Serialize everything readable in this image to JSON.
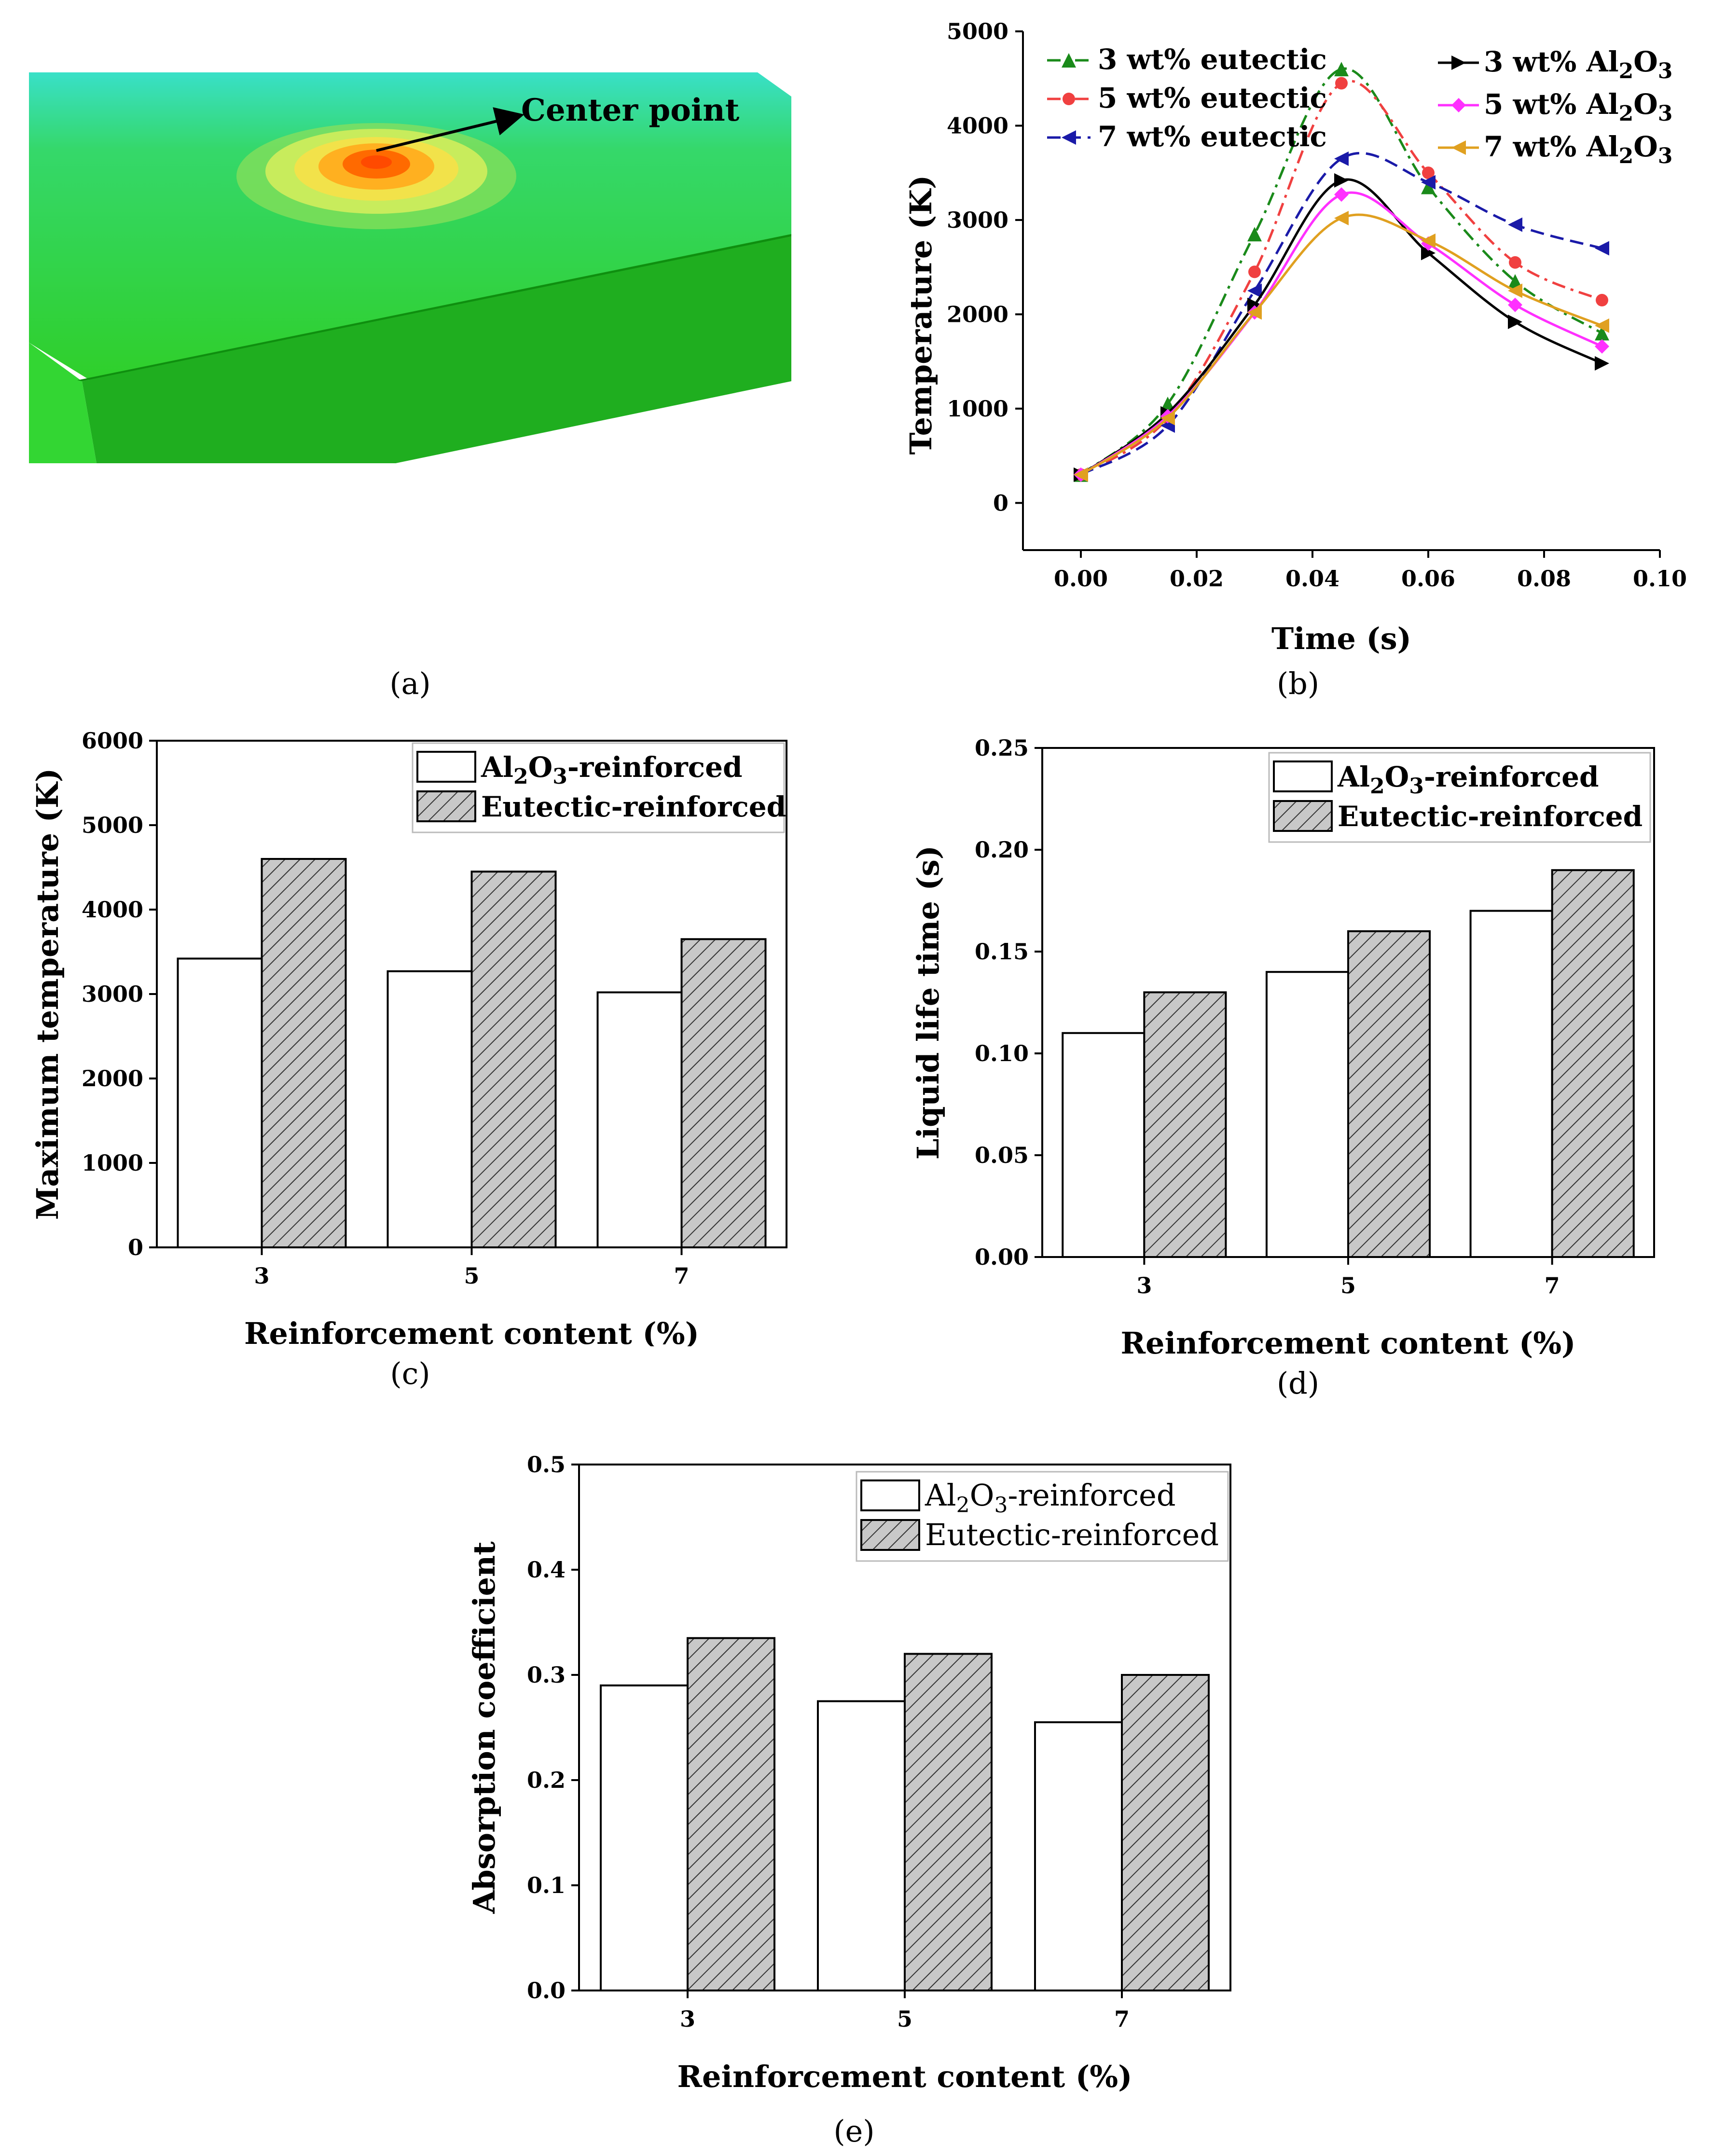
{
  "panel_a": {
    "caption": "(a)",
    "annotation": "Center point",
    "colors": {
      "base_green": "#2ecc2e",
      "dark_green": "#18a818",
      "cyan_edge": "#39e0c8",
      "hot": "#ff6a00"
    }
  },
  "captions": {
    "b": "(b)",
    "c": "(c)",
    "d": "(d)",
    "e": "(e)"
  },
  "chart_data": [
    {
      "id": "b",
      "type": "line",
      "xlabel": "Time (s)",
      "ylabel": "Temperature (K)",
      "xlim": [
        -0.01,
        0.1
      ],
      "ylim": [
        -500,
        5000
      ],
      "xticks": [
        "0.00",
        "0.02",
        "0.04",
        "0.06",
        "0.08",
        "0.10"
      ],
      "yticks": [
        "0",
        "1000",
        "2000",
        "3000",
        "4000",
        "5000"
      ],
      "legend_position": "top",
      "series": [
        {
          "name": "3 wt% eutectic",
          "color": "#1a8a1a",
          "marker": "triangle-up",
          "dash": "dashdot",
          "x": [
            0,
            0.015,
            0.03,
            0.045,
            0.06,
            0.075,
            0.09
          ],
          "y": [
            300,
            1050,
            2850,
            4600,
            3350,
            2350,
            1800
          ]
        },
        {
          "name": "5 wt% eutectic",
          "color": "#f04040",
          "marker": "circle",
          "dash": "dashdot",
          "x": [
            0,
            0.015,
            0.03,
            0.045,
            0.06,
            0.075,
            0.09
          ],
          "y": [
            300,
            900,
            2450,
            4450,
            3500,
            2550,
            2150
          ]
        },
        {
          "name": "7 wt% eutectic",
          "color": "#1a1aa8",
          "marker": "triangle-left",
          "dash": "dash",
          "x": [
            0,
            0.015,
            0.03,
            0.045,
            0.06,
            0.075,
            0.09
          ],
          "y": [
            300,
            820,
            2250,
            3650,
            3400,
            2950,
            2700
          ]
        },
        {
          "name": "3 wt% Al2O3",
          "color": "#000000",
          "marker": "triangle-right",
          "dash": "solid",
          "x": [
            0,
            0.015,
            0.03,
            0.045,
            0.06,
            0.075,
            0.09
          ],
          "y": [
            300,
            950,
            2100,
            3420,
            2650,
            1920,
            1480
          ]
        },
        {
          "name": "5 wt% Al2O3",
          "color": "#ff30ff",
          "marker": "diamond",
          "dash": "solid",
          "x": [
            0,
            0.015,
            0.03,
            0.045,
            0.06,
            0.075,
            0.09
          ],
          "y": [
            300,
            920,
            2020,
            3270,
            2750,
            2100,
            1660
          ]
        },
        {
          "name": "7 wt% Al2O3",
          "color": "#e0a020",
          "marker": "triangle-left",
          "dash": "solid",
          "x": [
            0,
            0.015,
            0.03,
            0.045,
            0.06,
            0.075,
            0.09
          ],
          "y": [
            300,
            900,
            2020,
            3020,
            2780,
            2250,
            1880
          ]
        }
      ],
      "legend_labels": {
        "left": [
          "3 wt% eutectic",
          "5 wt% eutectic",
          "7 wt% eutectic"
        ],
        "right_prefix": [
          "3 wt% Al",
          "5 wt% Al",
          "7 wt% Al"
        ],
        "sub2": "2",
        "o": "O",
        "sub3": "3"
      }
    },
    {
      "id": "c",
      "type": "bar",
      "xlabel": "Reinforcement content (%)",
      "ylabel": "Maximum temperature (K)",
      "categories": [
        "3",
        "5",
        "7"
      ],
      "ylim": [
        0,
        6000
      ],
      "yticks": [
        "0",
        "1000",
        "2000",
        "3000",
        "4000",
        "5000",
        "6000"
      ],
      "legend_position": "top-right",
      "series": [
        {
          "name": "Al2O3-reinforced",
          "values": [
            3420,
            3270,
            3020
          ],
          "fill": "white"
        },
        {
          "name": "Eutectic-reinforced",
          "values": [
            4600,
            4450,
            3650
          ],
          "fill": "hatched"
        }
      ],
      "legend_labels": {
        "s1_a": "Al",
        "s1_sub2": "2",
        "s1_b": "O",
        "s1_sub3": "3",
        "s1_c": "-reinforced",
        "s2": "Eutectic-reinforced"
      }
    },
    {
      "id": "d",
      "type": "bar",
      "xlabel": "Reinforcement content (%)",
      "ylabel": "Liquid life time (s)",
      "categories": [
        "3",
        "5",
        "7"
      ],
      "ylim": [
        0,
        0.25
      ],
      "yticks": [
        "0.00",
        "0.05",
        "0.10",
        "0.15",
        "0.20",
        "0.25"
      ],
      "legend_position": "top-right",
      "series": [
        {
          "name": "Al2O3-reinforced",
          "values": [
            0.11,
            0.14,
            0.17
          ],
          "fill": "white"
        },
        {
          "name": "Eutectic-reinforced",
          "values": [
            0.13,
            0.16,
            0.19
          ],
          "fill": "hatched"
        }
      ],
      "legend_labels": {
        "s1_a": "Al",
        "s1_sub2": "2",
        "s1_b": "O",
        "s1_sub3": "3",
        "s1_c": "-reinforced",
        "s2": "Eutectic-reinforced"
      }
    },
    {
      "id": "e",
      "type": "bar",
      "xlabel": "Reinforcement content (%)",
      "ylabel": "Absorption coefficient",
      "categories": [
        "3",
        "5",
        "7"
      ],
      "ylim": [
        0,
        0.5
      ],
      "yticks": [
        "0.0",
        "0.1",
        "0.2",
        "0.3",
        "0.4",
        "0.5"
      ],
      "legend_position": "top-right",
      "series": [
        {
          "name": "Al2O3-reinforced",
          "values": [
            0.29,
            0.275,
            0.255
          ],
          "fill": "white"
        },
        {
          "name": "Eutectic-reinforced",
          "values": [
            0.335,
            0.32,
            0.3
          ],
          "fill": "hatched"
        }
      ],
      "legend_labels": {
        "s1_a": "Al",
        "s1_sub2": "2",
        "s1_b": "O",
        "s1_sub3": "3",
        "s1_c": "-reinforced",
        "s2": "Eutectic-reinforced"
      }
    }
  ]
}
